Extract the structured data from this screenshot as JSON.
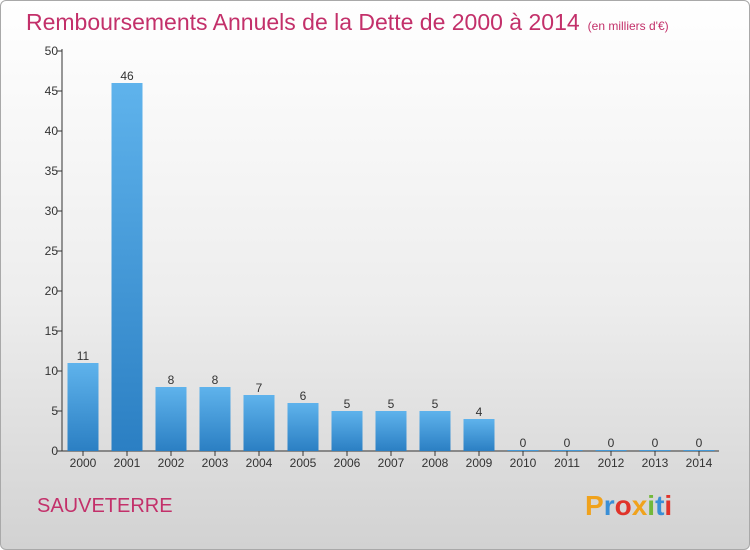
{
  "header": {
    "title": "Remboursements Annuels de la Dette de 2000 à 2014",
    "subtitle": "(en milliers d'€)"
  },
  "footer": {
    "commune": "SAUVETERRE",
    "brand": "Proxiti"
  },
  "colors": {
    "title": "#c3306a",
    "bar_light": "#5fb3ec",
    "bar_dark": "#2b7fc3",
    "axis": "#333333",
    "brand_letters": [
      "#f0a21c",
      "#3a8fd6",
      "#e0332a",
      "#f0a21c",
      "#72b83a",
      "#3a8fd6",
      "#e0332a"
    ]
  },
  "chart_data": {
    "type": "bar",
    "categories": [
      "2000",
      "2001",
      "2002",
      "2003",
      "2004",
      "2005",
      "2006",
      "2007",
      "2008",
      "2009",
      "2010",
      "2011",
      "2012",
      "2013",
      "2014"
    ],
    "values": [
      11,
      46,
      8,
      8,
      7,
      6,
      5,
      5,
      5,
      4,
      0,
      0,
      0,
      0,
      0
    ],
    "ylim": [
      0,
      50
    ],
    "yticks": [
      0,
      5,
      10,
      15,
      20,
      25,
      30,
      35,
      40,
      45,
      50
    ],
    "data_labels": [
      "11",
      "46",
      "8",
      "8",
      "7",
      "6",
      "5",
      "5",
      "5",
      "4",
      "0",
      "0",
      "0",
      "0",
      "0"
    ],
    "grid": false,
    "legend": "none"
  }
}
